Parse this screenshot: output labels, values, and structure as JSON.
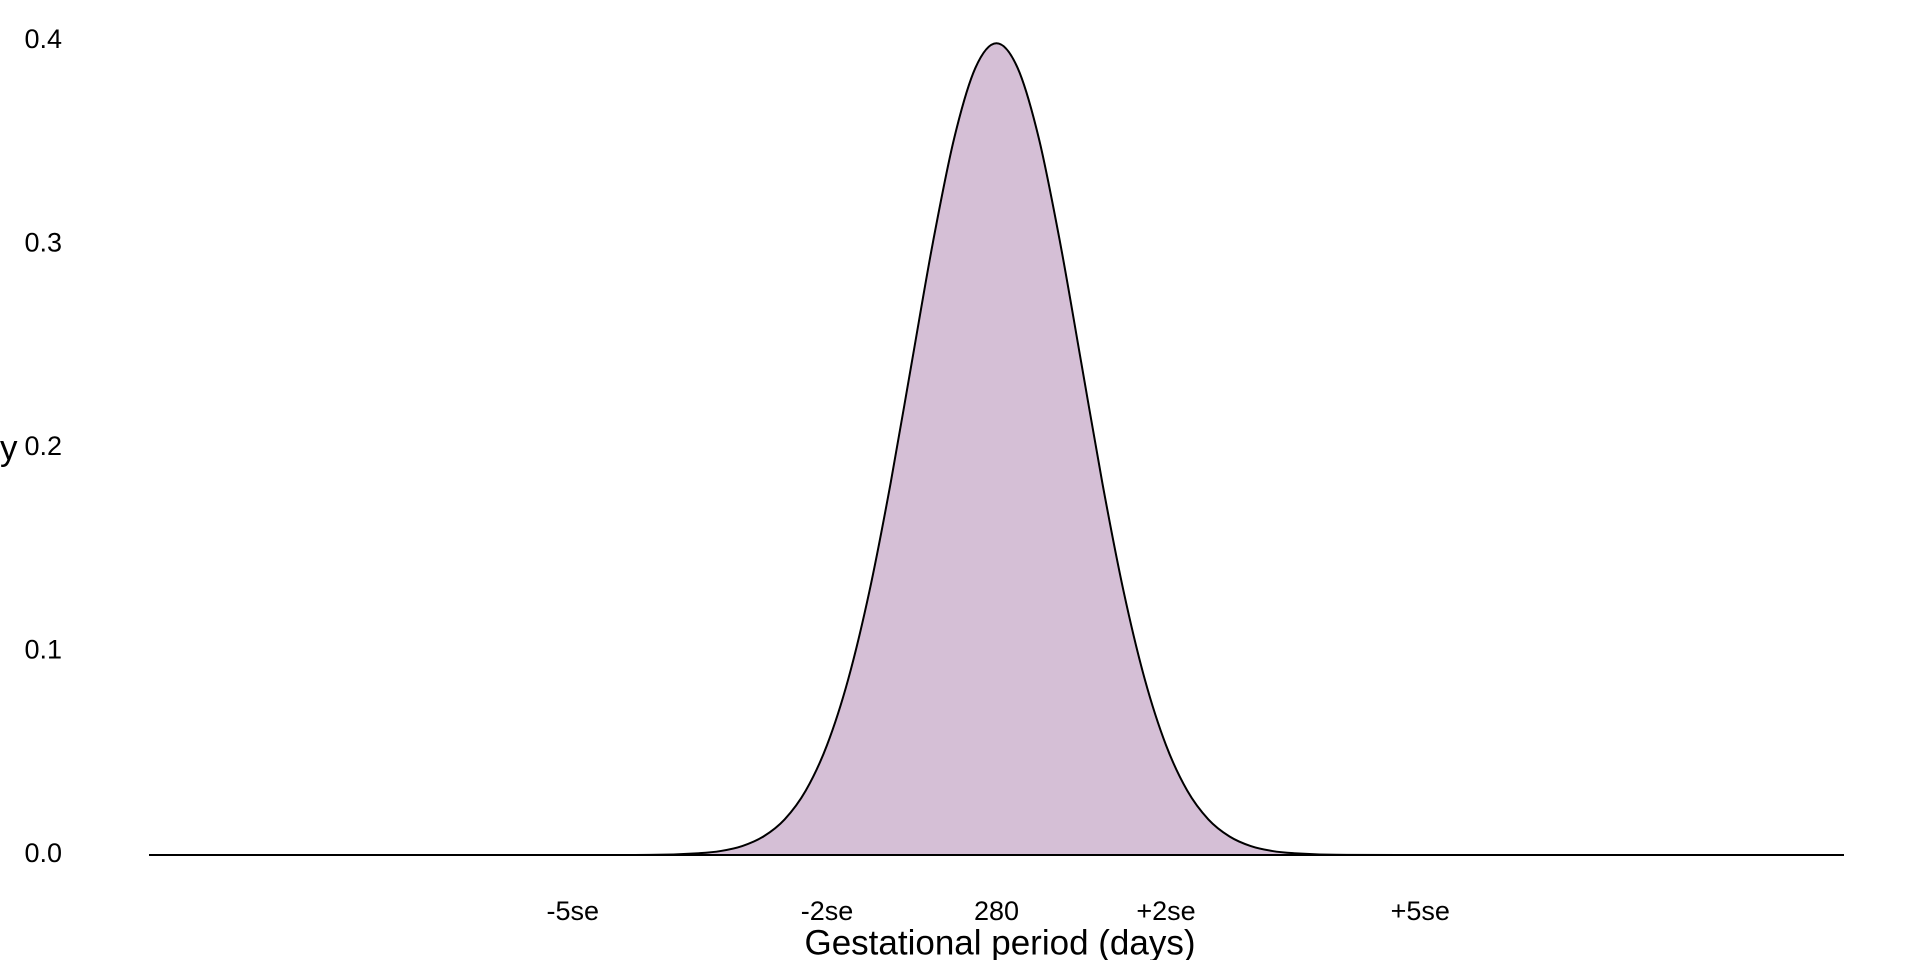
{
  "chart_data": {
    "type": "area",
    "x_label": "Gestational period (days)",
    "y_label": "y",
    "x": [
      -10,
      -5,
      -4,
      -3.5,
      -3.25,
      -3,
      -2.75,
      -2.5,
      -2.25,
      -2,
      -1.75,
      -1.5,
      -1.25,
      -1,
      -0.75,
      -0.5,
      -0.25,
      0,
      0.25,
      0.5,
      0.75,
      1,
      1.25,
      1.5,
      1.75,
      2,
      2.25,
      2.5,
      2.75,
      3,
      3.25,
      3.5,
      4,
      5,
      10
    ],
    "values": [
      0,
      0,
      0.0001,
      0.0009,
      0.002,
      0.0044,
      0.0091,
      0.0175,
      0.0317,
      0.054,
      0.0863,
      0.1295,
      0.1826,
      0.242,
      0.3011,
      0.3521,
      0.3867,
      0.3989,
      0.3867,
      0.3521,
      0.3011,
      0.242,
      0.1826,
      0.1295,
      0.0863,
      0.054,
      0.0317,
      0.0175,
      0.0091,
      0.0044,
      0.002,
      0.0009,
      0.0001,
      0,
      0
    ],
    "color": "#d5bfd6",
    "line_color": "#000000",
    "xlim": [
      -10,
      10
    ],
    "ylim": [
      0,
      0.4
    ],
    "xticks": [
      {
        "value": -5,
        "label": "-5se"
      },
      {
        "value": -2,
        "label": "-2se"
      },
      {
        "value": 0,
        "label": "280"
      },
      {
        "value": 2,
        "label": "+2se"
      },
      {
        "value": 5,
        "label": "+5se"
      }
    ],
    "yticks": [
      {
        "value": 0,
        "label": "0.0"
      },
      0.1,
      0.2,
      0.3,
      0.4
    ],
    "grid": false
  }
}
